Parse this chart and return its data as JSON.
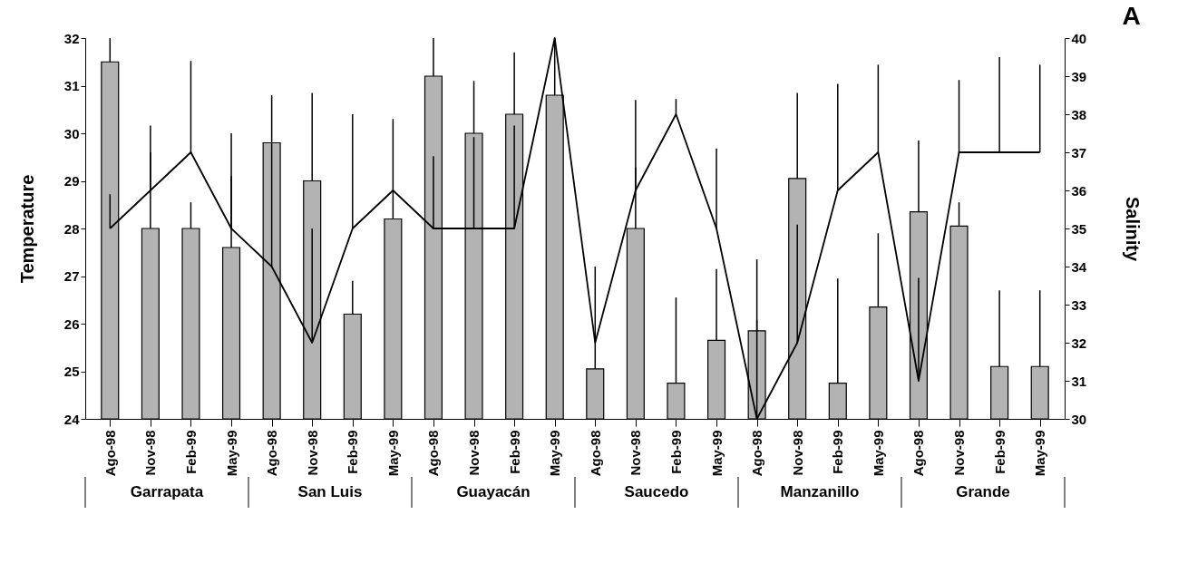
{
  "chart_data": {
    "type": "bar",
    "title": "A",
    "ylabel": "Temperature",
    "y2label": "Salinity",
    "categories": [
      "Ago-98",
      "Nov-98",
      "Feb-99",
      "May-99",
      "Ago-98",
      "Nov-98",
      "Feb-99",
      "May-99",
      "Ago-98",
      "Nov-98",
      "Feb-99",
      "May-99",
      "Ago-98",
      "Nov-98",
      "Feb-99",
      "May-99",
      "Ago-98",
      "Nov-98",
      "Feb-99",
      "May-99",
      "Ago-98",
      "Nov-98",
      "Feb-99",
      "May-99"
    ],
    "annotations": [
      "Garrapata",
      "San Luis",
      "Guayacán",
      "Saucedo",
      "Manzanillo",
      "Grande"
    ],
    "ylim": [
      24,
      32
    ],
    "yticks": [
      24,
      25,
      26,
      27,
      28,
      29,
      30,
      31,
      32
    ],
    "y2lim": [
      30,
      40
    ],
    "y2ticks": [
      30,
      31,
      32,
      33,
      34,
      35,
      36,
      37,
      38,
      39,
      40
    ],
    "grid": false,
    "marker": "none",
    "line_style": "solid",
    "series": [
      {
        "color": "#b3b3b3",
        "values": [
          31.5,
          28,
          28,
          27.6,
          29.8,
          29,
          26.2,
          28.2,
          31.2,
          30,
          30.4,
          30.8,
          25.05,
          28,
          24.75,
          25.65,
          25.85,
          29.05,
          24.75,
          26.35,
          28.35,
          28.05,
          25.1,
          25.1
        ],
        "errors": [
          [
            31.5,
            32
          ],
          [
            28,
            29.6
          ],
          [
            28,
            28.55
          ],
          [
            27.6,
            29.1
          ],
          null,
          [
            29,
            30.85
          ],
          [
            26.2,
            26.9
          ],
          [
            28.2,
            30.3
          ],
          [
            31.2,
            32
          ],
          [
            30,
            31.1
          ],
          [
            30.4,
            31.7
          ],
          [
            30.8,
            32
          ],
          [
            25.05,
            27.2
          ],
          [
            28,
            30.7
          ],
          [
            24.75,
            26.55
          ],
          [
            25.65,
            27.15
          ],
          [
            25.85,
            27.35
          ],
          [
            29.05,
            30.85
          ],
          [
            24.75,
            26.95
          ],
          [
            26.35,
            27.9
          ],
          [
            28.35,
            29.85
          ],
          [
            28.05,
            28.55
          ],
          [
            25.1,
            26.7
          ],
          [
            25.1,
            26.7
          ]
        ]
      },
      {
        "type": "line",
        "axis": "y2",
        "color": "#000000",
        "values": [
          35,
          36,
          37,
          35,
          34,
          32,
          35,
          36,
          35,
          35,
          35,
          40,
          32,
          36,
          38,
          35,
          30,
          32,
          36,
          37,
          31,
          37,
          37,
          37
        ],
        "errors": [
          [
            35,
            35.9
          ],
          [
            36,
            37.7
          ],
          [
            37,
            39.4
          ],
          [
            35,
            37.5
          ],
          [
            34,
            38.5
          ],
          [
            32,
            35
          ],
          [
            35,
            38
          ],
          null,
          [
            35,
            36.9
          ],
          [
            35,
            37.4
          ],
          [
            35,
            37.7
          ],
          null,
          null,
          [
            36,
            36.6
          ],
          [
            38,
            38.4
          ],
          [
            35,
            37.1
          ],
          [
            30,
            32.6
          ],
          [
            32,
            35.1
          ],
          [
            36,
            38.8
          ],
          [
            37,
            39.3
          ],
          [
            31,
            33.7
          ],
          [
            37,
            38.9
          ],
          [
            37,
            39.5
          ],
          [
            37,
            39.3
          ]
        ]
      }
    ]
  }
}
